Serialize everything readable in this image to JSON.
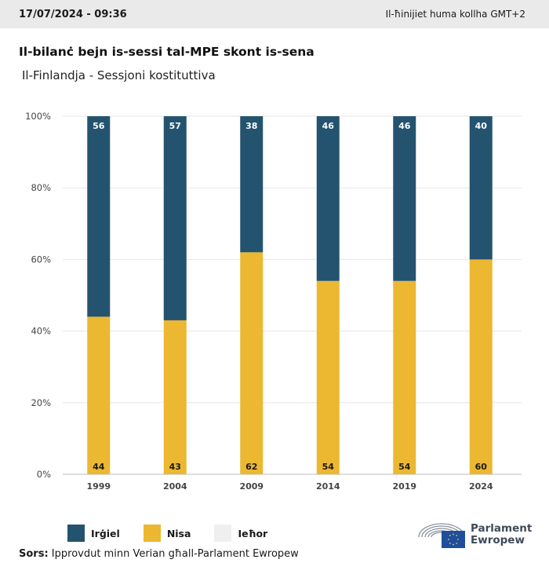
{
  "header": {
    "timestamp": "17/07/2024 - 09:36",
    "timezone_note": "Il-ħinijiet huma kollha GMT+2"
  },
  "title": "Il-bilanċ bejn is-sessi tal-MPE skont is-sena",
  "subtitle": "Il-Finlandja - Sessjoni kostituttiva",
  "chart_data": {
    "type": "bar",
    "stacked": true,
    "categories": [
      "1999",
      "2004",
      "2009",
      "2014",
      "2019",
      "2024"
    ],
    "series": [
      {
        "name": "Nisa",
        "color": "#ecb731",
        "values": [
          44,
          43,
          62,
          54,
          54,
          60
        ]
      },
      {
        "name": "Irġiel",
        "color": "#24536f",
        "values": [
          56,
          57,
          38,
          46,
          46,
          40
        ]
      },
      {
        "name": "Ieħor",
        "color": "#efefef",
        "values": [
          0,
          0,
          0,
          0,
          0,
          0
        ]
      }
    ],
    "y_ticks": [
      "0%",
      "20%",
      "40%",
      "60%",
      "80%",
      "100%"
    ],
    "ylim": [
      0,
      100
    ],
    "grid": true,
    "legend_position": "bottom-left"
  },
  "legend": [
    {
      "label": "Irġiel",
      "color": "#24536f"
    },
    {
      "label": "Nisa",
      "color": "#ecb731"
    },
    {
      "label": "Ieħor",
      "color": "#efefef"
    }
  ],
  "source": {
    "label": "Sors:",
    "text": "Ipprovdut minn Verian għall-Parlament Ewropew"
  },
  "logo": {
    "line1": "Parlament",
    "line2": "Ewropew"
  }
}
